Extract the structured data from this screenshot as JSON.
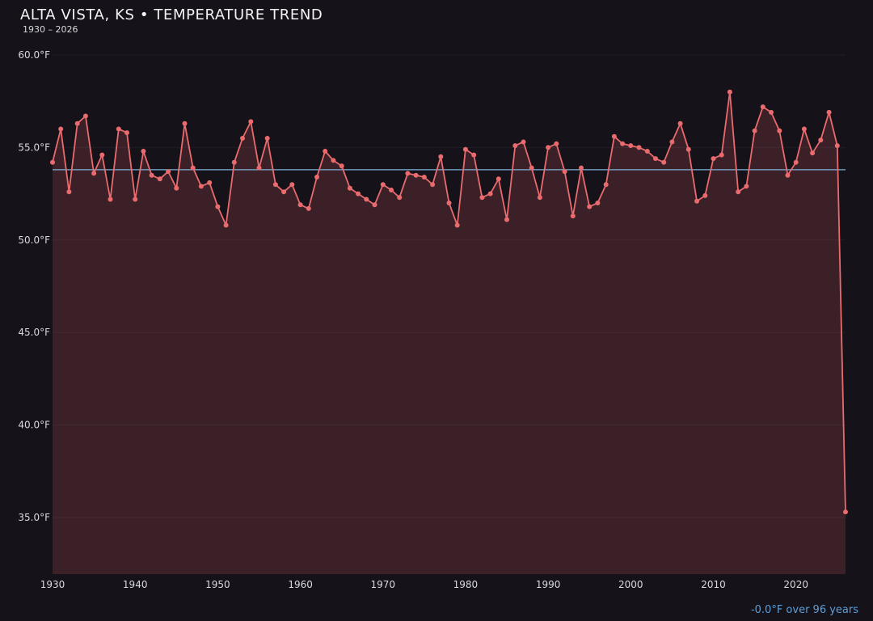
{
  "header": {
    "title": "ALTA VISTA, KS • TEMPERATURE TREND",
    "subtitle": "1930 – 2026"
  },
  "footer": {
    "trend_label": "-0.0°F over 96 years"
  },
  "chart_data": {
    "type": "line",
    "title": "ALTA VISTA, KS • TEMPERATURE TREND",
    "subtitle": "1930 – 2026",
    "xlabel": "",
    "ylabel": "",
    "ylim": [
      35,
      60
    ],
    "grid": true,
    "legend": "none",
    "x": [
      1930,
      1931,
      1932,
      1933,
      1934,
      1935,
      1936,
      1937,
      1938,
      1939,
      1940,
      1941,
      1942,
      1943,
      1944,
      1945,
      1946,
      1947,
      1948,
      1949,
      1950,
      1951,
      1952,
      1953,
      1954,
      1955,
      1956,
      1957,
      1958,
      1959,
      1960,
      1961,
      1962,
      1963,
      1964,
      1965,
      1966,
      1967,
      1968,
      1969,
      1970,
      1971,
      1972,
      1973,
      1974,
      1975,
      1976,
      1977,
      1978,
      1979,
      1980,
      1981,
      1982,
      1983,
      1984,
      1985,
      1986,
      1987,
      1988,
      1989,
      1990,
      1991,
      1992,
      1993,
      1994,
      1995,
      1996,
      1997,
      1998,
      1999,
      2000,
      2001,
      2002,
      2003,
      2004,
      2005,
      2006,
      2007,
      2008,
      2009,
      2010,
      2011,
      2012,
      2013,
      2014,
      2015,
      2016,
      2017,
      2018,
      2019,
      2020,
      2021,
      2022,
      2023,
      2024,
      2025,
      2026
    ],
    "values": [
      54.2,
      56.0,
      52.6,
      56.3,
      56.7,
      53.6,
      54.6,
      52.2,
      56.0,
      55.8,
      52.2,
      54.8,
      53.5,
      53.3,
      53.7,
      52.8,
      56.3,
      53.9,
      52.9,
      53.1,
      51.8,
      50.8,
      54.2,
      55.5,
      56.4,
      53.9,
      55.5,
      53.0,
      52.6,
      53.0,
      51.9,
      51.7,
      53.4,
      54.8,
      54.3,
      54.0,
      52.8,
      52.5,
      52.2,
      51.9,
      53.0,
      52.7,
      52.3,
      53.6,
      53.5,
      53.4,
      53.0,
      54.5,
      52.0,
      50.8,
      54.9,
      54.6,
      52.3,
      52.5,
      53.3,
      51.1,
      55.1,
      55.3,
      53.9,
      52.3,
      55.0,
      55.2,
      53.7,
      51.3,
      53.9,
      51.8,
      52.0,
      53.0,
      55.6,
      55.2,
      55.1,
      55.0,
      54.8,
      54.4,
      54.2,
      55.3,
      56.3,
      54.9,
      52.1,
      52.4,
      54.4,
      54.6,
      58.0,
      52.6,
      52.9,
      55.9,
      57.2,
      56.9,
      55.9,
      53.5,
      54.2,
      56.0,
      54.7,
      55.4,
      56.9,
      55.1,
      35.3
    ],
    "trend_line": {
      "start_year": 1930,
      "end_year": 2026,
      "value": 53.8,
      "label": "-0.0°F over 96 years"
    },
    "yticks": [
      {
        "value": 60,
        "label": "60.0°F"
      },
      {
        "value": 55,
        "label": "55.0°F"
      },
      {
        "value": 50,
        "label": "50.0°F"
      },
      {
        "value": 45,
        "label": "45.0°F"
      },
      {
        "value": 40,
        "label": "40.0°F"
      },
      {
        "value": 35,
        "label": "35.0°F"
      }
    ],
    "xticks": [
      1930,
      1940,
      1950,
      1960,
      1970,
      1980,
      1990,
      2000,
      2010,
      2020
    ],
    "colors": {
      "line": "#e96b6e",
      "fill": "rgba(233,98,104,0.18)",
      "trend": "#7fb3d9",
      "background": "#15121a",
      "text": "#d9d9de",
      "footer_text": "#5d9fd8"
    }
  }
}
